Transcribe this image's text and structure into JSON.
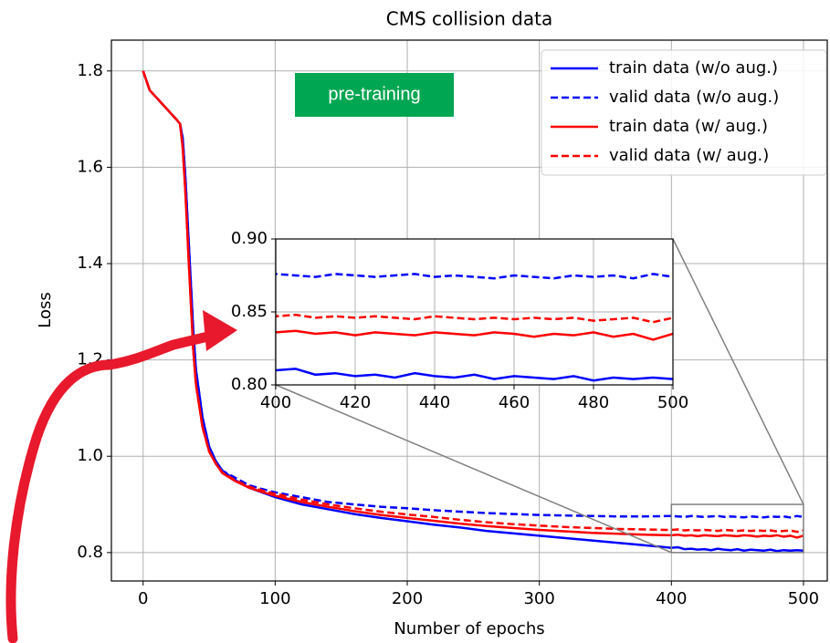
{
  "chart_data": {
    "type": "line",
    "title": "CMS collision data",
    "x_label": "Number of epochs",
    "y_label": "Loss",
    "annotation": "pre-training",
    "x": [
      0,
      5,
      10,
      15,
      20,
      25,
      28,
      30,
      32,
      35,
      38,
      40,
      45,
      50,
      55,
      60,
      70,
      80,
      90,
      100,
      120,
      140,
      160,
      180,
      200,
      220,
      240,
      260,
      280,
      300,
      320,
      340,
      360,
      380,
      400,
      405,
      410,
      415,
      420,
      425,
      430,
      435,
      440,
      445,
      450,
      455,
      460,
      465,
      470,
      475,
      480,
      485,
      490,
      495,
      500
    ],
    "series": [
      {
        "name": "train data (w/o aug.)",
        "color": "#0000ff",
        "dash": false,
        "values": [
          1.8,
          1.76,
          1.745,
          1.73,
          1.715,
          1.7,
          1.69,
          1.66,
          1.58,
          1.42,
          1.26,
          1.18,
          1.08,
          1.02,
          0.99,
          0.97,
          0.95,
          0.935,
          0.925,
          0.915,
          0.9,
          0.89,
          0.88,
          0.872,
          0.865,
          0.858,
          0.852,
          0.845,
          0.84,
          0.835,
          0.83,
          0.825,
          0.82,
          0.815,
          0.81,
          0.811,
          0.807,
          0.808,
          0.806,
          0.807,
          0.805,
          0.808,
          0.806,
          0.805,
          0.807,
          0.804,
          0.806,
          0.805,
          0.804,
          0.806,
          0.803,
          0.805,
          0.804,
          0.805,
          0.804
        ]
      },
      {
        "name": "valid data (w/o aug.)",
        "color": "#0000ff",
        "dash": true,
        "values": [
          1.8,
          1.76,
          1.745,
          1.73,
          1.715,
          1.7,
          1.69,
          1.66,
          1.58,
          1.42,
          1.26,
          1.18,
          1.08,
          1.02,
          0.99,
          0.97,
          0.955,
          0.94,
          0.932,
          0.925,
          0.915,
          0.905,
          0.9,
          0.895,
          0.892,
          0.888,
          0.885,
          0.882,
          0.88,
          0.878,
          0.877,
          0.876,
          0.875,
          0.875,
          0.876,
          0.875,
          0.874,
          0.876,
          0.875,
          0.874,
          0.875,
          0.876,
          0.874,
          0.875,
          0.874,
          0.873,
          0.875,
          0.874,
          0.873,
          0.875,
          0.874,
          0.875,
          0.873,
          0.876,
          0.874
        ]
      },
      {
        "name": "train data (w/ aug.)",
        "color": "#ff0000",
        "dash": false,
        "values": [
          1.8,
          1.76,
          1.745,
          1.73,
          1.715,
          1.7,
          1.69,
          1.64,
          1.55,
          1.38,
          1.22,
          1.15,
          1.06,
          1.01,
          0.985,
          0.965,
          0.948,
          0.935,
          0.926,
          0.918,
          0.905,
          0.895,
          0.886,
          0.878,
          0.872,
          0.866,
          0.86,
          0.855,
          0.851,
          0.847,
          0.844,
          0.841,
          0.839,
          0.837,
          0.836,
          0.837,
          0.835,
          0.836,
          0.834,
          0.836,
          0.835,
          0.834,
          0.836,
          0.835,
          0.834,
          0.836,
          0.835,
          0.833,
          0.835,
          0.834,
          0.836,
          0.833,
          0.835,
          0.831,
          0.835
        ]
      },
      {
        "name": "valid data (w/ aug.)",
        "color": "#ff0000",
        "dash": true,
        "values": [
          1.8,
          1.76,
          1.745,
          1.73,
          1.715,
          1.7,
          1.69,
          1.64,
          1.55,
          1.38,
          1.22,
          1.15,
          1.06,
          1.01,
          0.985,
          0.966,
          0.95,
          0.937,
          0.929,
          0.922,
          0.91,
          0.9,
          0.892,
          0.885,
          0.879,
          0.874,
          0.868,
          0.863,
          0.859,
          0.856,
          0.853,
          0.851,
          0.849,
          0.848,
          0.847,
          0.848,
          0.846,
          0.847,
          0.846,
          0.847,
          0.846,
          0.845,
          0.847,
          0.846,
          0.845,
          0.846,
          0.845,
          0.846,
          0.845,
          0.846,
          0.844,
          0.845,
          0.846,
          0.843,
          0.846
        ]
      }
    ],
    "xlim": [
      -24,
      518
    ],
    "ylim": [
      0.741,
      1.864
    ],
    "xticks": [
      0,
      100,
      200,
      300,
      400,
      500
    ],
    "yticks": [
      0.8,
      {
        "value": 1,
        "label": "1.0"
      },
      1.2,
      1.4,
      1.6,
      1.8
    ],
    "grid": true,
    "legend": "upper right",
    "inset": {
      "xlim": [
        400,
        500
      ],
      "ylim": [
        0.8,
        0.9
      ],
      "xticks": [
        400,
        420,
        440,
        460,
        480,
        500
      ],
      "yticks": [
        {
          "value": 0.8,
          "label": "0.80"
        },
        {
          "value": 0.85,
          "label": "0.85"
        },
        {
          "value": 0.9,
          "label": "0.90"
        }
      ]
    }
  }
}
